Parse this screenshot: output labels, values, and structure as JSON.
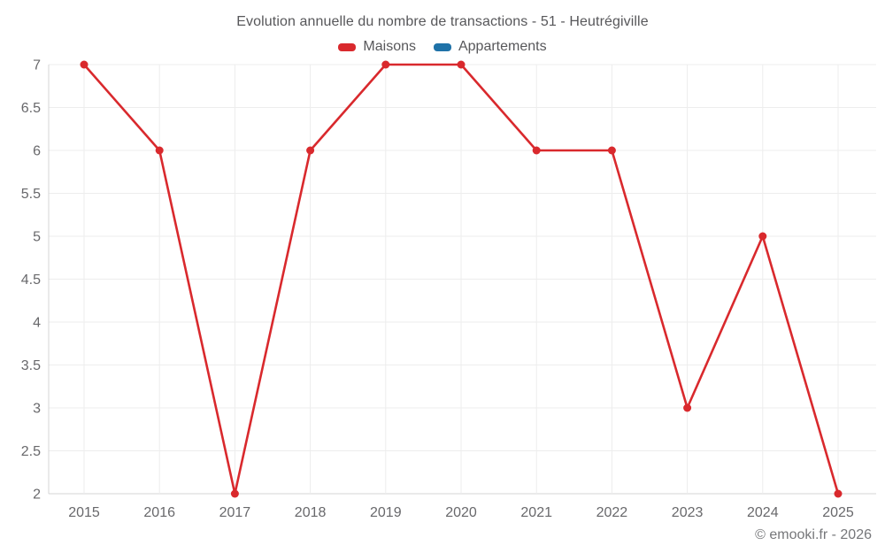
{
  "header": {
    "title": "Evolution annuelle du nombre de transactions - 51 - Heutrégiville"
  },
  "footer": {
    "credit": "© emooki.fr - 2026"
  },
  "chart_data": {
    "type": "line",
    "title": "Evolution annuelle du nombre de transactions - 51 - Heutrégiville",
    "x": [
      2015,
      2016,
      2017,
      2018,
      2019,
      2020,
      2021,
      2022,
      2023,
      2024,
      2025
    ],
    "series": [
      {
        "name": "Maisons",
        "color": "#d9292d",
        "values": [
          7,
          6,
          2,
          6,
          7,
          7,
          6,
          6,
          3,
          5,
          2
        ]
      },
      {
        "name": "Appartements",
        "color": "#1f72a8",
        "values": []
      }
    ],
    "ylim": [
      2,
      7
    ],
    "ytick_step": 0.5,
    "grid": true,
    "legend_position": "top",
    "styles": {
      "grid_color": "#ededed",
      "axis_color": "#d4d4d6",
      "tick_color": "#68686b",
      "point_radius": 4.5,
      "line_width": 2.6
    }
  }
}
